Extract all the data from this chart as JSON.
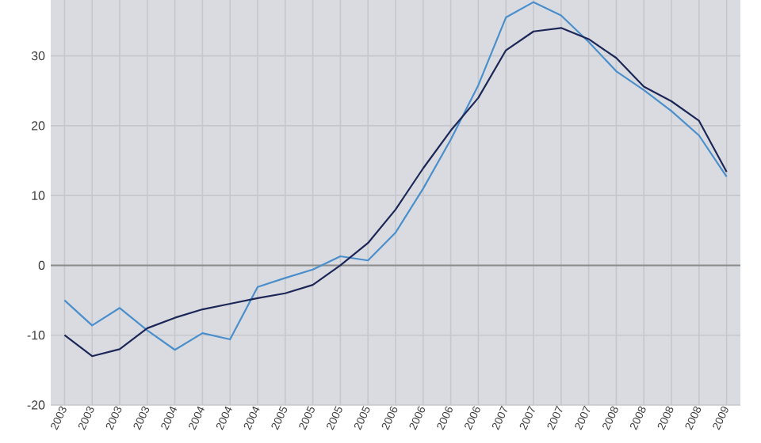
{
  "chart_data": {
    "type": "line",
    "categories": [
      "2003",
      "2003",
      "2003",
      "2003",
      "2004",
      "2004",
      "2004",
      "2004",
      "2005",
      "2005",
      "2005",
      "2005",
      "2006",
      "2006",
      "2006",
      "2006",
      "2007",
      "2007",
      "2007",
      "2007",
      "2008",
      "2008",
      "2008",
      "2008",
      "2009"
    ],
    "series": [
      {
        "color": "#4a8fcc",
        "values": [
          -5,
          -8.6,
          -6.1,
          -9.3,
          -12.1,
          -9.7,
          -10.6,
          -3.1,
          -1.8,
          -0.6,
          1.3,
          0.7,
          4.7,
          11,
          18,
          25.8,
          35.5,
          37.7,
          35.8,
          32,
          27.8,
          25.1,
          22.1,
          18.6,
          12.7
        ]
      },
      {
        "color": "#1c2757",
        "values": [
          -10,
          -13,
          -12,
          -9,
          -7.5,
          -6.3,
          -5.5,
          -4.7,
          -4,
          -2.8,
          0,
          3.2,
          8,
          13.9,
          19.3,
          24,
          30.8,
          33.5,
          34,
          32.4,
          29.7,
          25.6,
          23.5,
          20.7,
          13.4
        ]
      }
    ],
    "ylim": [
      -20,
      38
    ],
    "yticks": [
      -20,
      -10,
      0,
      10,
      20,
      30
    ],
    "grid": true,
    "ref_lines": [
      {
        "axis": "y",
        "value": 0,
        "color": "#8c8c8c"
      }
    ]
  }
}
